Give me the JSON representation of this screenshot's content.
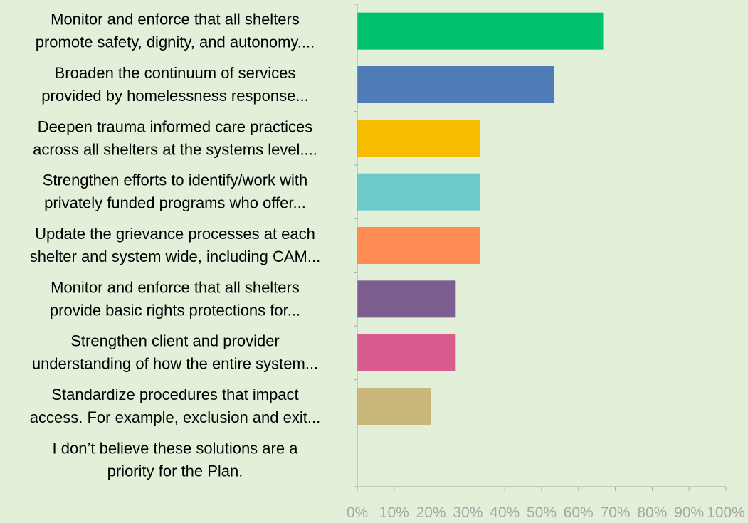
{
  "chart_data": {
    "type": "bar",
    "orientation": "horizontal",
    "title": "",
    "xlabel": "",
    "ylabel": "",
    "categories": [
      [
        "Monitor and enforce that all shelters",
        "promote safety, dignity, and autonomy...."
      ],
      [
        "Broaden the continuum of services",
        "provided by homelessness response..."
      ],
      [
        "Deepen trauma informed care practices",
        "across all shelters at the systems level...."
      ],
      [
        "Strengthen efforts to identify/work with",
        "privately funded programs who offer..."
      ],
      [
        "Update the grievance processes at each",
        "shelter and system wide, including CAM..."
      ],
      [
        "Monitor and enforce that all shelters",
        "provide basic rights protections for..."
      ],
      [
        "Strengthen client and provider",
        "understanding of how the entire system..."
      ],
      [
        "Standardize procedures that impact",
        "access. For example, exclusion and exit..."
      ],
      [
        "I don’t believe these solutions are a",
        "priority for the Plan."
      ]
    ],
    "values": [
      66.7,
      53.3,
      33.3,
      33.3,
      33.3,
      26.7,
      26.7,
      20.0,
      0
    ],
    "bar_colors": [
      "#00c16e",
      "#4f7bb8",
      "#f7be00",
      "#6ccaca",
      "#ff8c52",
      "#7e5e91",
      "#d85c8e",
      "#cab87a",
      "#cccccc"
    ],
    "xlim": [
      0,
      100
    ],
    "x_ticks": [
      "0%",
      "10%",
      "20%",
      "30%",
      "40%",
      "50%",
      "60%",
      "70%",
      "80%",
      "90%",
      "100%"
    ],
    "grid": false,
    "legend": "none"
  },
  "colors": {
    "background": "#e2efd9",
    "axis": "#a6a6a6",
    "label_text": "#000000",
    "tick_text": "#a6a6a6"
  }
}
